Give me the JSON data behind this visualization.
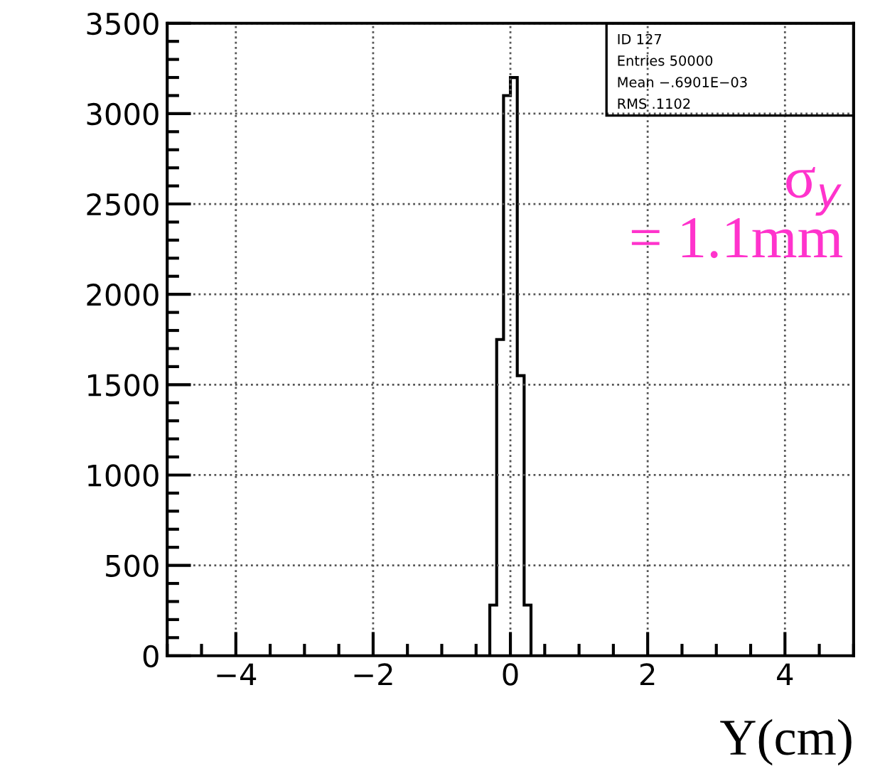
{
  "chart_data": {
    "type": "histogram",
    "xlabel": "Y(cm)",
    "bins": [
      -0.3,
      -0.2,
      -0.1,
      0,
      0.1,
      0.2,
      0.3
    ],
    "values": [
      280,
      1750,
      3100,
      3200,
      1550,
      280
    ],
    "color": "#000000",
    "xlim": [
      -5,
      5
    ],
    "xticks": [
      {
        "value": -4,
        "label": "−4"
      },
      {
        "value": -2,
        "label": "−2"
      },
      0,
      2,
      4
    ],
    "ylim": [
      0,
      3500
    ],
    "yticks": [
      0,
      500,
      1000,
      1500,
      2000,
      2500,
      3000,
      3500
    ],
    "grid": true,
    "line_style": "solid",
    "legend": false,
    "annotations": [
      "ID 127",
      "Entries 50000",
      "Mean −.6901E−03",
      "RMS .1102",
      "σ$_{y}$\n= 1.1mm"
    ]
  }
}
